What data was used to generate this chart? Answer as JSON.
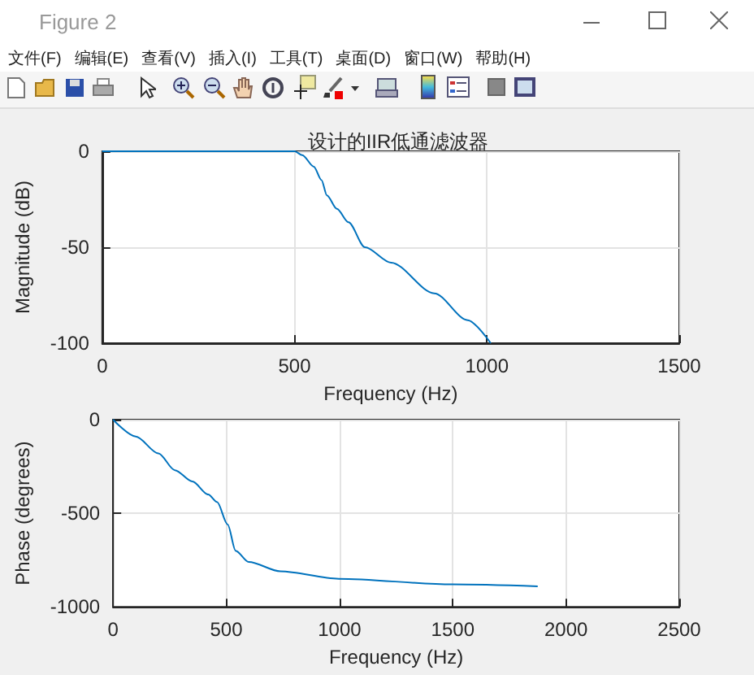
{
  "chart_data": [
    {
      "type": "line",
      "title": "设计的IIR低通滤波器",
      "xlabel": "Frequency (Hz)",
      "ylabel": "Magnitude (dB)",
      "annotations": [
        "Figure 2",
        "文件(F)",
        "编辑(E)",
        "查看(V)",
        "插入(I)",
        "工具(T)",
        "桌面(D)",
        "窗口(W)",
        "帮助(H)"
      ],
      "x": [
        0,
        500,
        520,
        550,
        570,
        584,
        610,
        640,
        683,
        751,
        863,
        950,
        1010
      ],
      "series": [
        {
          "color": "#0072bd",
          "values": [
            0,
            0,
            -2,
            -8,
            -15,
            -23,
            -30,
            -37,
            -50,
            -58,
            -74,
            -88,
            -100
          ]
        }
      ],
      "xlim": [
        0,
        1500
      ],
      "xticks": [
        0,
        500,
        1000,
        1500
      ],
      "ylim": [
        -100,
        0
      ],
      "yticks": [
        -100,
        -50,
        0
      ],
      "grid": true
    },
    {
      "type": "line",
      "xlabel": "Frequency (Hz)",
      "ylabel": "Phase (degrees)",
      "x": [
        0,
        100,
        200,
        273,
        350,
        420,
        459,
        506,
        541,
        599,
        739,
        996,
        1497,
        1875
      ],
      "series": [
        {
          "color": "#0072bd",
          "values": [
            0,
            -90,
            -180,
            -270,
            -330,
            -400,
            -440,
            -560,
            -700,
            -760,
            -810,
            -850,
            -880,
            -890
          ]
        }
      ],
      "xlim": [
        0,
        2500
      ],
      "xticks": [
        0,
        500,
        1000,
        1500,
        2000,
        2500
      ],
      "ylim": [
        -1000,
        0
      ],
      "yticks": [
        -1000,
        -500,
        0
      ],
      "grid": true
    }
  ]
}
